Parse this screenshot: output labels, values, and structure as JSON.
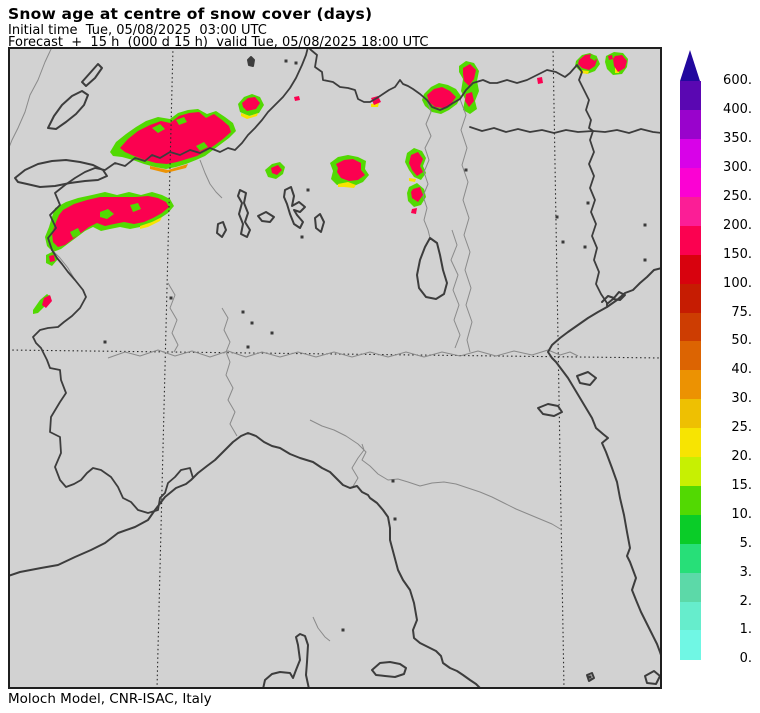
{
  "header": {
    "title": "Snow age at centre of snow cover (days)",
    "initial_time_line": "Initial time  Tue, 05/08/2025  03:00 UTC",
    "forecast_line": "Forecast  +  15 h  (000 d 15 h)  valid Tue, 05/08/2025 18:00 UTC"
  },
  "footer": {
    "attribution": "Moloch Model, CNR-ISAC, Italy"
  },
  "colorbar": {
    "tick_labels": [
      "600.",
      "400.",
      "350.",
      "300.",
      "250.",
      "200.",
      "150.",
      "100.",
      "75.",
      "50.",
      "40.",
      "30.",
      "25.",
      "20.",
      "15.",
      "10.",
      "5.",
      "3.",
      "2.",
      "1.",
      "0."
    ],
    "segment_colors": [
      "#5a07b2",
      "#9903cc",
      "#d802e8",
      "#fb02d3",
      "#fb1e96",
      "#fb0150",
      "#d8020e",
      "#c61c02",
      "#cd3d02",
      "#dc6402",
      "#ec9202",
      "#eec002",
      "#f7e402",
      "#c7f002",
      "#52d902",
      "#0acc28",
      "#27df78",
      "#5cd9a8",
      "#66edcc",
      "#70f7e4"
    ],
    "arrow_color": "#22089e"
  },
  "map": {
    "background_color": "#d2d2d2",
    "frame_color": "#1f1f1f",
    "thick_border_color": "#3d3d3d",
    "thin_border_color": "#8a8a8a",
    "graticule_color": "#2a2a2a",
    "snow_colors": {
      "green": "#52d902",
      "pink": "#fb0150",
      "yellow": "#f7e402",
      "orange": "#ec9202"
    }
  }
}
